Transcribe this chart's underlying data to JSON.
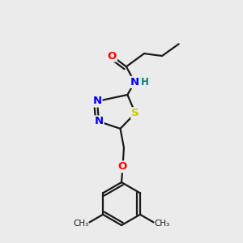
{
  "bg_color": "#ebebeb",
  "bond_color": "#1a1a1a",
  "line_width": 1.6,
  "atom_colors": {
    "O": "#ff0000",
    "N": "#0000ff",
    "S": "#cccc00",
    "H": "#008080",
    "C": "#1a1a1a"
  },
  "font_size": 9.5
}
